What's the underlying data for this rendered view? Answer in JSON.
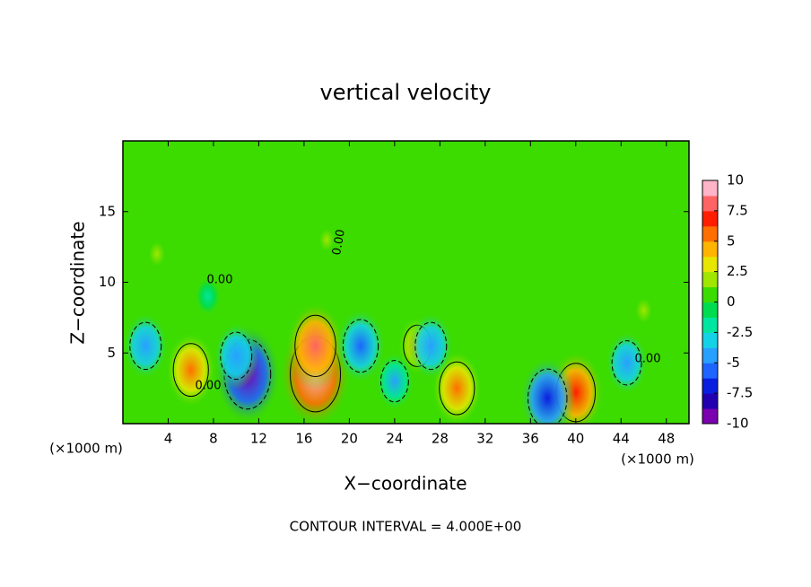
{
  "chart_data": {
    "type": "contour",
    "title": "vertical velocity",
    "xlabel": "X−coordinate",
    "ylabel": "Z−coordinate",
    "x_unit_label": "(×1000 m)",
    "footer": "CONTOUR INTERVAL = 4.000E+00",
    "contour_label": "0.00",
    "xlim": [
      0,
      50
    ],
    "xticks": [
      4,
      8,
      12,
      16,
      20,
      24,
      28,
      32,
      36,
      40,
      44,
      48
    ],
    "ylim": [
      0,
      20
    ],
    "yticks": [
      5,
      10,
      15
    ],
    "clim": [
      -10,
      10
    ],
    "colorbar_ticks": [
      10,
      7.5,
      5,
      2.5,
      0,
      -2.5,
      -5,
      -7.5,
      -10
    ],
    "colormap": [
      "#7a00b0",
      "#2200b0",
      "#0a1ee0",
      "#1e64ff",
      "#28a0ff",
      "#14d2e6",
      "#00e6a0",
      "#00dc50",
      "#3cdc00",
      "#a0e600",
      "#e6e600",
      "#ffb400",
      "#ff6e00",
      "#ff1e00",
      "#ff6464",
      "#ffb4c8"
    ],
    "field": [
      {
        "x": 17,
        "z": 3.5,
        "value": 10
      },
      {
        "x": 17,
        "z": 5.5,
        "value": 7.5
      },
      {
        "x": 6,
        "z": 3.8,
        "value": 6
      },
      {
        "x": 29.5,
        "z": 2.5,
        "value": 6
      },
      {
        "x": 40,
        "z": 2.2,
        "value": 7
      },
      {
        "x": 11,
        "z": 3.5,
        "value": -9
      },
      {
        "x": 10,
        "z": 4.8,
        "value": -5
      },
      {
        "x": 21,
        "z": 5.5,
        "value": -6
      },
      {
        "x": 37.5,
        "z": 1.8,
        "value": -7
      },
      {
        "x": 44.5,
        "z": 4.3,
        "value": -4.5
      },
      {
        "x": 2,
        "z": 5.5,
        "value": -5
      },
      {
        "x": 26,
        "z": 5.5,
        "value": 4
      },
      {
        "x": 27.2,
        "z": 5.5,
        "value": -5
      },
      {
        "x": 24,
        "z": 3,
        "value": -4
      },
      {
        "x": 3,
        "z": 12,
        "value": 2
      },
      {
        "x": 18,
        "z": 13,
        "value": 1.5
      },
      {
        "x": 46,
        "z": 8,
        "value": 2
      },
      {
        "x": 7.5,
        "z": 9,
        "value": -1.5
      }
    ]
  }
}
